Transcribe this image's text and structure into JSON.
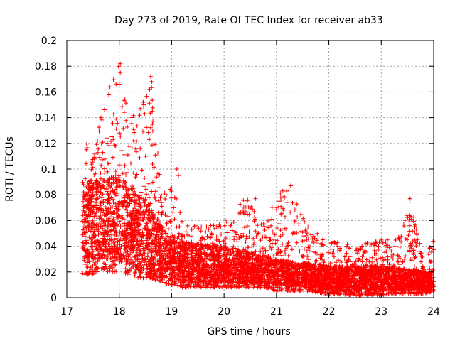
{
  "chart_data": {
    "type": "scatter",
    "title": "Day 273 of 2019, Rate Of TEC Index for receiver ab33",
    "xlabel": "GPS time / hours",
    "ylabel": "ROTI / TECUs",
    "xlim": [
      17,
      24
    ],
    "ylim": [
      0,
      0.2
    ],
    "x_ticks": [
      "17",
      "18",
      "19",
      "20",
      "21",
      "22",
      "23",
      "24"
    ],
    "y_ticks": [
      "0",
      "0.02",
      "0.04",
      "0.06",
      "0.08",
      "0.1",
      "0.12",
      "0.14",
      "0.16",
      "0.18",
      "0.2"
    ],
    "grid": true,
    "marker": "+",
    "series_color": "#ff0000",
    "envelope": [
      {
        "x": 17.3,
        "lo": 0.018,
        "hi": 0.128
      },
      {
        "x": 17.5,
        "lo": 0.018,
        "hi": 0.112
      },
      {
        "x": 17.65,
        "lo": 0.022,
        "hi": 0.14
      },
      {
        "x": 17.8,
        "lo": 0.02,
        "hi": 0.164
      },
      {
        "x": 18.0,
        "lo": 0.02,
        "hi": 0.182
      },
      {
        "x": 18.2,
        "lo": 0.018,
        "hi": 0.14
      },
      {
        "x": 18.4,
        "lo": 0.015,
        "hi": 0.15
      },
      {
        "x": 18.6,
        "lo": 0.015,
        "hi": 0.172
      },
      {
        "x": 18.8,
        "lo": 0.012,
        "hi": 0.085
      },
      {
        "x": 19.0,
        "lo": 0.01,
        "hi": 0.1
      },
      {
        "x": 19.2,
        "lo": 0.008,
        "hi": 0.06
      },
      {
        "x": 19.6,
        "lo": 0.008,
        "hi": 0.055
      },
      {
        "x": 20.0,
        "lo": 0.008,
        "hi": 0.06
      },
      {
        "x": 20.4,
        "lo": 0.008,
        "hi": 0.078
      },
      {
        "x": 20.8,
        "lo": 0.008,
        "hi": 0.058
      },
      {
        "x": 21.0,
        "lo": 0.005,
        "hi": 0.08
      },
      {
        "x": 21.25,
        "lo": 0.005,
        "hi": 0.087
      },
      {
        "x": 21.6,
        "lo": 0.005,
        "hi": 0.055
      },
      {
        "x": 22.0,
        "lo": 0.003,
        "hi": 0.045
      },
      {
        "x": 22.5,
        "lo": 0.002,
        "hi": 0.042
      },
      {
        "x": 23.0,
        "lo": 0.002,
        "hi": 0.045
      },
      {
        "x": 23.3,
        "lo": 0.003,
        "hi": 0.045
      },
      {
        "x": 23.55,
        "lo": 0.003,
        "hi": 0.077
      },
      {
        "x": 23.8,
        "lo": 0.003,
        "hi": 0.03
      },
      {
        "x": 24.0,
        "lo": 0.005,
        "hi": 0.045
      }
    ],
    "dense_band": [
      {
        "x": 17.3,
        "lo": 0.03,
        "hi": 0.09
      },
      {
        "x": 18.0,
        "lo": 0.03,
        "hi": 0.095
      },
      {
        "x": 18.5,
        "lo": 0.02,
        "hi": 0.075
      },
      {
        "x": 19.0,
        "lo": 0.012,
        "hi": 0.045
      },
      {
        "x": 20.0,
        "lo": 0.012,
        "hi": 0.04
      },
      {
        "x": 21.0,
        "lo": 0.01,
        "hi": 0.03
      },
      {
        "x": 22.0,
        "lo": 0.006,
        "hi": 0.025
      },
      {
        "x": 23.0,
        "lo": 0.006,
        "hi": 0.025
      },
      {
        "x": 24.0,
        "lo": 0.006,
        "hi": 0.02
      }
    ],
    "highlights": [
      {
        "x": 18.02,
        "y": 0.182
      },
      {
        "x": 18.02,
        "y": 0.175
      },
      {
        "x": 18.0,
        "y": 0.166
      },
      {
        "x": 17.82,
        "y": 0.164
      },
      {
        "x": 18.6,
        "y": 0.172
      },
      {
        "x": 18.62,
        "y": 0.168
      },
      {
        "x": 18.58,
        "y": 0.162
      },
      {
        "x": 18.63,
        "y": 0.145
      },
      {
        "x": 18.47,
        "y": 0.15
      },
      {
        "x": 18.4,
        "y": 0.147
      },
      {
        "x": 17.65,
        "y": 0.14
      },
      {
        "x": 19.1,
        "y": 0.1
      },
      {
        "x": 19.13,
        "y": 0.095
      },
      {
        "x": 21.27,
        "y": 0.087
      },
      {
        "x": 20.6,
        "y": 0.077
      },
      {
        "x": 20.45,
        "y": 0.076
      },
      {
        "x": 21.05,
        "y": 0.075
      },
      {
        "x": 23.55,
        "y": 0.077
      },
      {
        "x": 23.57,
        "y": 0.061
      },
      {
        "x": 23.53,
        "y": 0.059
      },
      {
        "x": 23.99,
        "y": 0.044
      },
      {
        "x": 23.97,
        "y": 0.038
      },
      {
        "x": 21.6,
        "y": 0.055
      },
      {
        "x": 21.55,
        "y": 0.052
      }
    ]
  }
}
